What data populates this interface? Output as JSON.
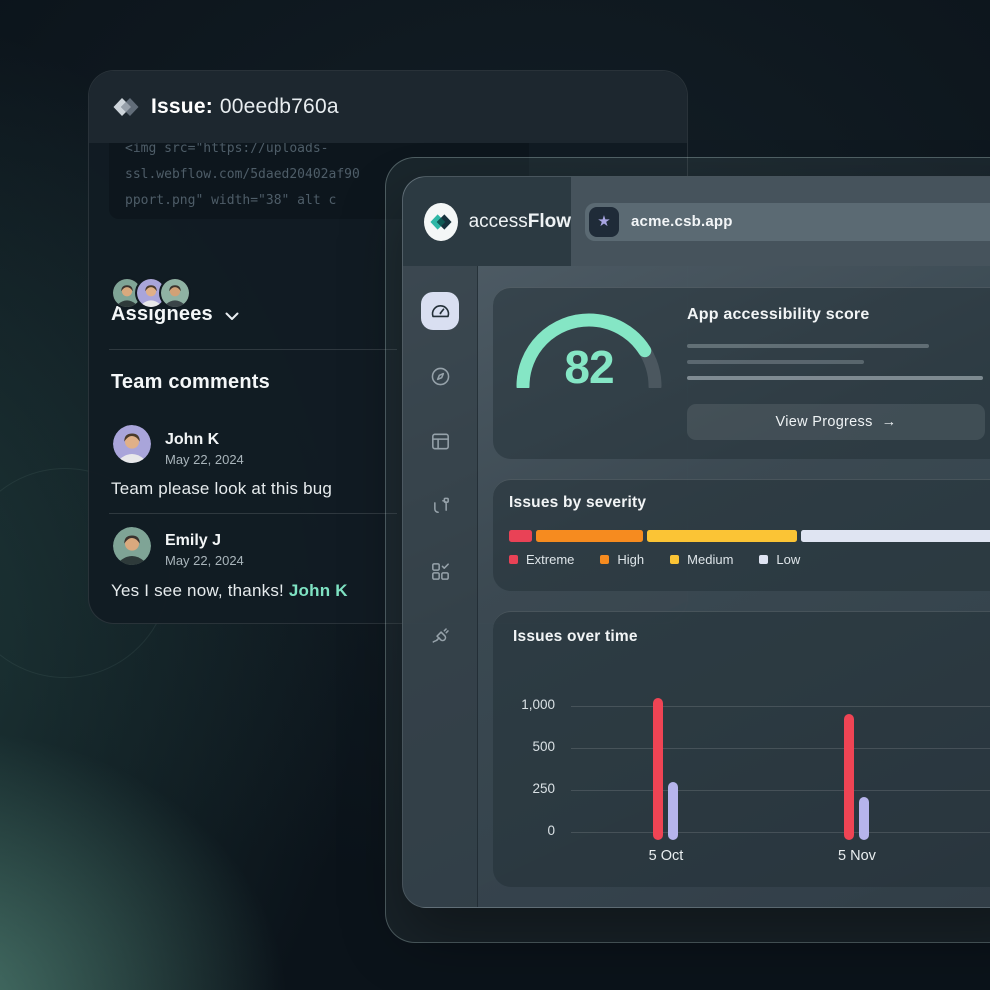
{
  "colors": {
    "mint": "#85e6c5",
    "comment_mint": "#7fe3c3",
    "gauge_track": "#4b575f",
    "severity": [
      "#e94256",
      "#f68b1f",
      "#fbc435",
      "#dfe4f2"
    ],
    "bar_red": "#ef4454",
    "bar_lavender": "#b6b4ec",
    "active_chip": "#d9dff1",
    "star": "#a8a5e2"
  },
  "avatar_palettes": {
    "green_w": {
      "bg": "#7fa496",
      "hair": "#3a322e",
      "skin": "#d9a97e",
      "shirt": "#2e3a3a"
    },
    "lavender": {
      "bg": "#a9a5da",
      "hair": "#4a3a2a",
      "skin": "#e0b088",
      "shirt": "#e8e8ea"
    },
    "sage": {
      "bg": "#8fb2a3",
      "hair": "#3c332c",
      "skin": "#d2a176",
      "shirt": "#3a4448"
    }
  },
  "issue_panel": {
    "title_label": "Issue:",
    "title_id": "00eedb760a",
    "code_lines": [
      "<img src=\"https://uploads-",
      "ssl.webflow.com/5daed20402af90",
      "pport.png\" width=\"38\" alt c"
    ],
    "assignees": {
      "label": "Assignees",
      "avatars": [
        "green_w",
        "lavender",
        "sage"
      ]
    },
    "comments": {
      "heading": "Team comments",
      "items": [
        {
          "name": "John K",
          "date": "May 22, 2024",
          "avatar": "lavender",
          "text": "Team please look at this bug",
          "highlight": ""
        },
        {
          "name": "Emily J",
          "date": "May 22, 2024",
          "avatar": "green_w",
          "text": "Yes I see now, thanks! ",
          "highlight": "John K"
        }
      ]
    }
  },
  "app_window": {
    "brand_regular": "access",
    "brand_bold": "Flow",
    "url": "acme.csb.app",
    "star_glyph": "★",
    "sidebar": {
      "active_index": 0,
      "items": [
        "speedometer",
        "compass",
        "layout",
        "flow",
        "tasks",
        "plug"
      ]
    },
    "score_card": {
      "button_label": "View Progress",
      "button_arrow": "→"
    }
  },
  "chart_data": [
    {
      "type": "gauge",
      "title": "App accessibility score",
      "value": 82,
      "min": 0,
      "max": 100,
      "fill_color": "#85e6c5",
      "track_color": "#4b575f"
    },
    {
      "type": "stacked_bar",
      "title": "Issues by severity",
      "categories": [
        "Extreme",
        "High",
        "Medium",
        "Low"
      ],
      "values_percent": [
        4.7,
        22.3,
        31.3,
        41.7
      ],
      "colors": [
        "#e94256",
        "#f68b1f",
        "#fbc435",
        "#dfe4f2"
      ],
      "legend_position": "bottom"
    },
    {
      "type": "bar",
      "title": "Issues over time",
      "categories": [
        "5 Oct",
        "5 Nov"
      ],
      "series": [
        {
          "name": "red",
          "color": "#ef4454",
          "values": [
            1100,
            900
          ]
        },
        {
          "name": "lavender",
          "color": "#b6b4ec",
          "values": [
            300,
            210
          ]
        }
      ],
      "y_ticks": [
        0,
        250,
        500,
        1000
      ],
      "y_tick_labels": [
        "0",
        "250",
        "500",
        "1,000"
      ],
      "grid": true,
      "note": "y axis non-linear: ticks 0/250/500/1000 evenly spaced"
    }
  ]
}
